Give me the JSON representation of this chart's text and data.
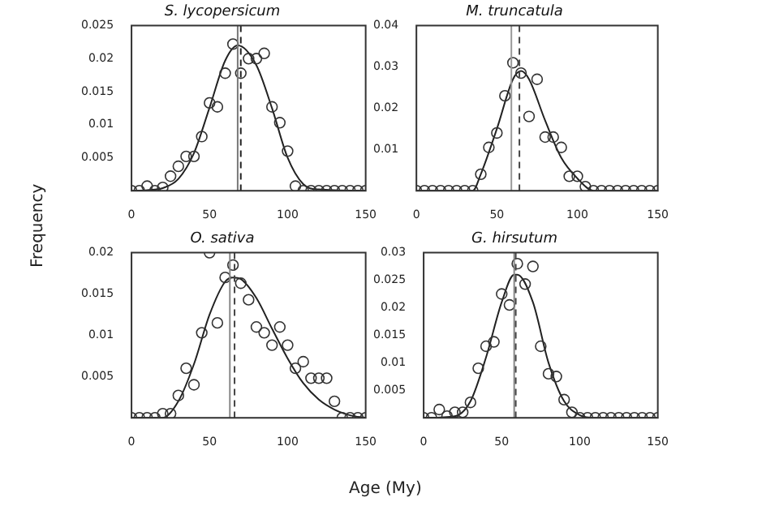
{
  "chart_data": [
    {
      "type": "scatter",
      "title": "S. lycopersicum",
      "ylabel": "Frequency",
      "xlim": [
        0,
        150
      ],
      "xticks": [
        0,
        50,
        100,
        150
      ],
      "ylim": [
        0,
        0.025
      ],
      "yticks": [
        0.005,
        0.01,
        0.015,
        0.02,
        0.025
      ],
      "grid": false,
      "legend": false,
      "series": [
        {
          "marker": "circle",
          "color": "#333333",
          "x": [
            0,
            5,
            10,
            15,
            20,
            25,
            30,
            35,
            40,
            45,
            50,
            55,
            60,
            65,
            70,
            75,
            80,
            85,
            90,
            95,
            100,
            105,
            110,
            115,
            120,
            125,
            130,
            135,
            140,
            145,
            150
          ],
          "values": [
            0,
            0,
            0.0007,
            0,
            0.0005,
            0.0022,
            0.0037,
            0.0052,
            0.0052,
            0.0082,
            0.0133,
            0.0127,
            0.0178,
            0.0222,
            0.0178,
            0.02,
            0.02,
            0.0208,
            0.0127,
            0.0103,
            0.006,
            0.0007,
            0,
            0,
            0,
            0,
            0,
            0,
            0,
            0,
            0
          ]
        },
        {
          "type": "line",
          "color": "#222222",
          "x": [
            0,
            10,
            20,
            30,
            40,
            50,
            60,
            68,
            80,
            90,
            100,
            110,
            120,
            150
          ],
          "values": [
            0,
            0.0001,
            0.0004,
            0.0018,
            0.0057,
            0.0126,
            0.0197,
            0.022,
            0.019,
            0.0125,
            0.005,
            0.001,
            0.0002,
            0
          ]
        }
      ],
      "ref_lines": [
        {
          "axis": "x",
          "value": 68,
          "color": "#777777",
          "line_style": "solid"
        },
        {
          "axis": "x",
          "value": 70,
          "color": "#222222",
          "line_style": "dashed"
        }
      ]
    },
    {
      "type": "scatter",
      "title": "M. truncatula",
      "xlim": [
        0,
        150
      ],
      "xticks": [
        0,
        50,
        100,
        150
      ],
      "ylim": [
        0,
        0.04
      ],
      "yticks": [
        0.01,
        0.02,
        0.03,
        0.04
      ],
      "grid": false,
      "legend": false,
      "series": [
        {
          "marker": "circle",
          "color": "#333333",
          "x": [
            0,
            5,
            10,
            15,
            20,
            25,
            30,
            35,
            40,
            45,
            50,
            55,
            60,
            65,
            70,
            75,
            80,
            85,
            90,
            95,
            100,
            105,
            110,
            115,
            120,
            125,
            130,
            135,
            140,
            145,
            150
          ],
          "values": [
            0,
            0,
            0,
            0,
            0,
            0,
            0,
            0,
            0.004,
            0.0105,
            0.014,
            0.023,
            0.031,
            0.0285,
            0.018,
            0.027,
            0.013,
            0.013,
            0.0105,
            0.0035,
            0.0035,
            0.001,
            0,
            0,
            0,
            0,
            0,
            0,
            0,
            0,
            0
          ]
        },
        {
          "type": "line",
          "color": "#222222",
          "x": [
            0,
            35,
            40,
            50,
            60,
            65,
            70,
            80,
            90,
            100,
            110,
            150
          ],
          "values": [
            0,
            0,
            0.004,
            0.015,
            0.027,
            0.029,
            0.027,
            0.017,
            0.008,
            0.003,
            0,
            0
          ]
        }
      ],
      "ref_lines": [
        {
          "axis": "x",
          "value": 59,
          "color": "#999999",
          "line_style": "solid"
        },
        {
          "axis": "x",
          "value": 64,
          "color": "#444444",
          "line_style": "dashed"
        }
      ]
    },
    {
      "type": "scatter",
      "title": "O. sativa",
      "xlim": [
        0,
        150
      ],
      "xticks": [
        0,
        50,
        100,
        150
      ],
      "ylim": [
        0,
        0.02
      ],
      "yticks": [
        0.005,
        0.01,
        0.015,
        0.02
      ],
      "grid": false,
      "legend": false,
      "series": [
        {
          "marker": "circle",
          "color": "#333333",
          "x": [
            0,
            5,
            10,
            15,
            20,
            25,
            30,
            35,
            40,
            45,
            50,
            55,
            60,
            65,
            70,
            75,
            80,
            85,
            90,
            95,
            100,
            105,
            110,
            115,
            120,
            125,
            130,
            135,
            140,
            145,
            150
          ],
          "values": [
            0,
            0,
            0,
            0,
            0.0005,
            0.0005,
            0.0027,
            0.006,
            0.004,
            0.0103,
            0.02,
            0.0115,
            0.017,
            0.0185,
            0.0163,
            0.0143,
            0.011,
            0.0103,
            0.0088,
            0.011,
            0.0088,
            0.006,
            0.0068,
            0.0048,
            0.0048,
            0.0048,
            0.002,
            0,
            0,
            0,
            0
          ]
        },
        {
          "type": "line",
          "color": "#222222",
          "x": [
            0,
            20,
            30,
            40,
            50,
            60,
            65,
            70,
            80,
            90,
            100,
            110,
            120,
            130,
            140,
            150
          ],
          "values": [
            0,
            0,
            0.002,
            0.0065,
            0.0125,
            0.0165,
            0.017,
            0.0168,
            0.0145,
            0.0108,
            0.0072,
            0.0042,
            0.0022,
            0.001,
            0.0003,
            0
          ]
        }
      ],
      "ref_lines": [
        {
          "axis": "x",
          "value": 63,
          "color": "#888888",
          "line_style": "solid"
        },
        {
          "axis": "x",
          "value": 66,
          "color": "#444444",
          "line_style": "dashed"
        }
      ]
    },
    {
      "type": "scatter",
      "title": "G. hirsutum",
      "xlabel": "Age (My)",
      "xlim": [
        0,
        150
      ],
      "xticks": [
        0,
        50,
        100,
        150
      ],
      "ylim": [
        0,
        0.03
      ],
      "yticks": [
        0.005,
        0.01,
        0.015,
        0.02,
        0.025,
        0.03
      ],
      "grid": false,
      "legend": false,
      "series": [
        {
          "marker": "circle",
          "color": "#333333",
          "x": [
            0,
            5,
            10,
            15,
            20,
            25,
            30,
            35,
            40,
            45,
            50,
            55,
            60,
            65,
            70,
            75,
            80,
            85,
            90,
            95,
            100,
            105,
            110,
            115,
            120,
            125,
            130,
            135,
            140,
            145,
            150
          ],
          "values": [
            0,
            0,
            0.0015,
            0.0003,
            0.001,
            0.001,
            0.0028,
            0.009,
            0.013,
            0.0138,
            0.0225,
            0.0205,
            0.028,
            0.0243,
            0.0275,
            0.013,
            0.008,
            0.0075,
            0.0033,
            0.001,
            0,
            0,
            0,
            0,
            0,
            0,
            0,
            0,
            0,
            0,
            0
          ]
        },
        {
          "type": "line",
          "color": "#222222",
          "x": [
            0,
            20,
            30,
            40,
            50,
            58,
            60,
            70,
            80,
            90,
            100,
            110,
            150
          ],
          "values": [
            0,
            0.0003,
            0.003,
            0.011,
            0.021,
            0.026,
            0.026,
            0.021,
            0.01,
            0.003,
            0.0005,
            0,
            0
          ]
        }
      ],
      "ref_lines": [
        {
          "axis": "x",
          "value": 58,
          "color": "#888888",
          "line_style": "solid"
        },
        {
          "axis": "x",
          "value": 59,
          "color": "#444444",
          "line_style": "dashed"
        }
      ]
    }
  ]
}
